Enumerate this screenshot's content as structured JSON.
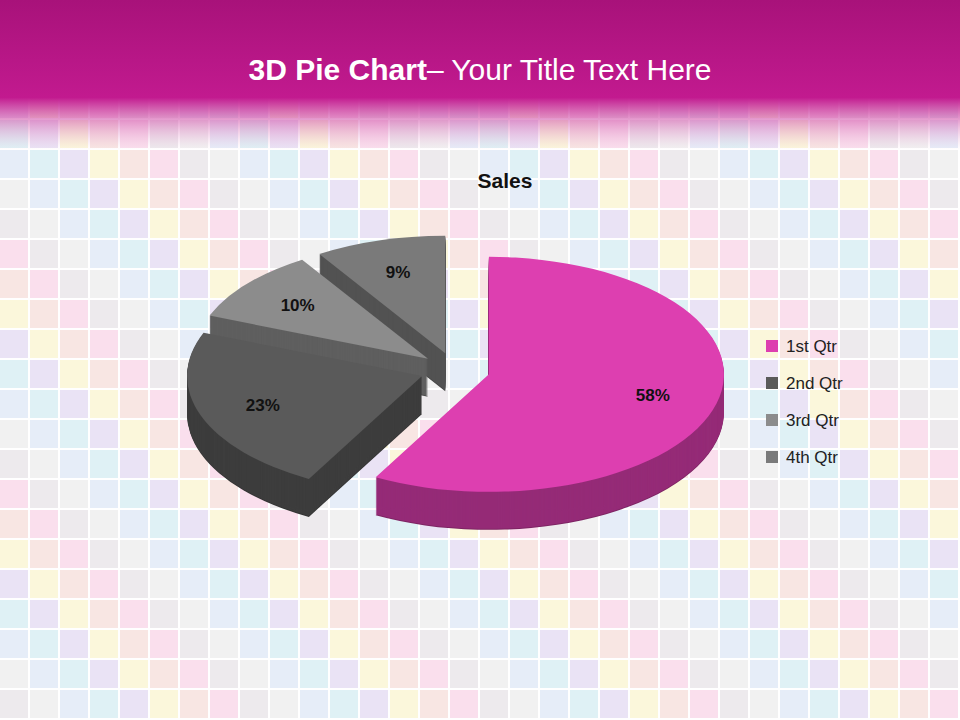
{
  "header": {
    "title": [
      "3D Pie Chart",
      "– Your Title Text Here"
    ]
  },
  "chart_data": {
    "type": "pie",
    "title": "Sales",
    "categories": [
      "1st Qtr",
      "2nd Qtr",
      "3rd Qtr",
      "4th Qtr"
    ],
    "values": [
      58,
      23,
      10,
      9
    ],
    "value_labels": [
      "58%",
      "23%",
      "10%",
      "9%"
    ],
    "colors": [
      "#dd3fb0",
      "#5a5a5a",
      "#8c8c8c",
      "#7a7a7a"
    ],
    "data_labels": true,
    "legend": "right"
  }
}
